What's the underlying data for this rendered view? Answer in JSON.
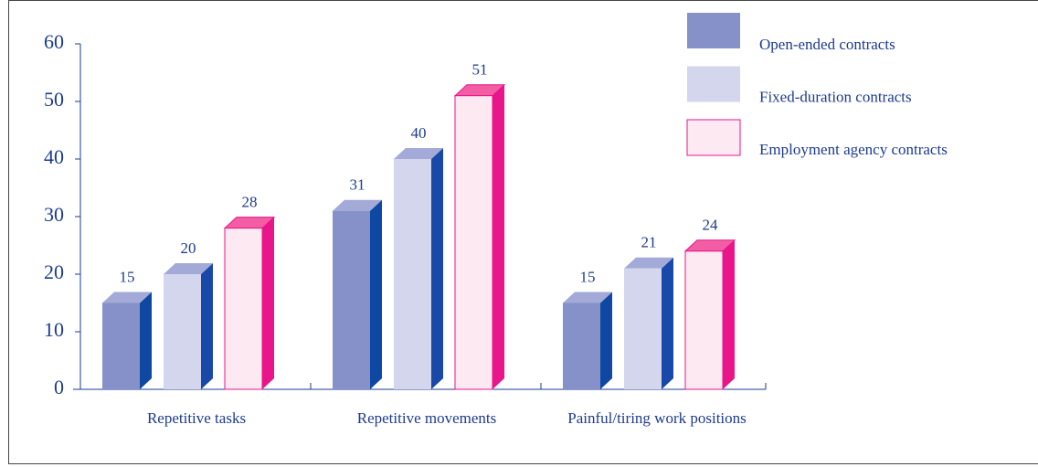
{
  "chart_data": {
    "type": "bar3d",
    "categories": [
      "Repetitive tasks",
      "Repetitive movements",
      "Painful/tiring work positions"
    ],
    "series": [
      {
        "name": "Open-ended contracts",
        "color": "#8591c8",
        "values": [
          15,
          31,
          15
        ]
      },
      {
        "name": "Fixed-duration contracts",
        "color": "#d3d6ec",
        "values": [
          20,
          40,
          21
        ]
      },
      {
        "name": "Employment agency contracts",
        "color": "#fde9f1",
        "values": [
          28,
          51,
          24
        ]
      }
    ],
    "ylim": [
      0,
      60
    ],
    "yticks": [
      0,
      10,
      20,
      30,
      40,
      50,
      60
    ],
    "legend": "upper right"
  }
}
